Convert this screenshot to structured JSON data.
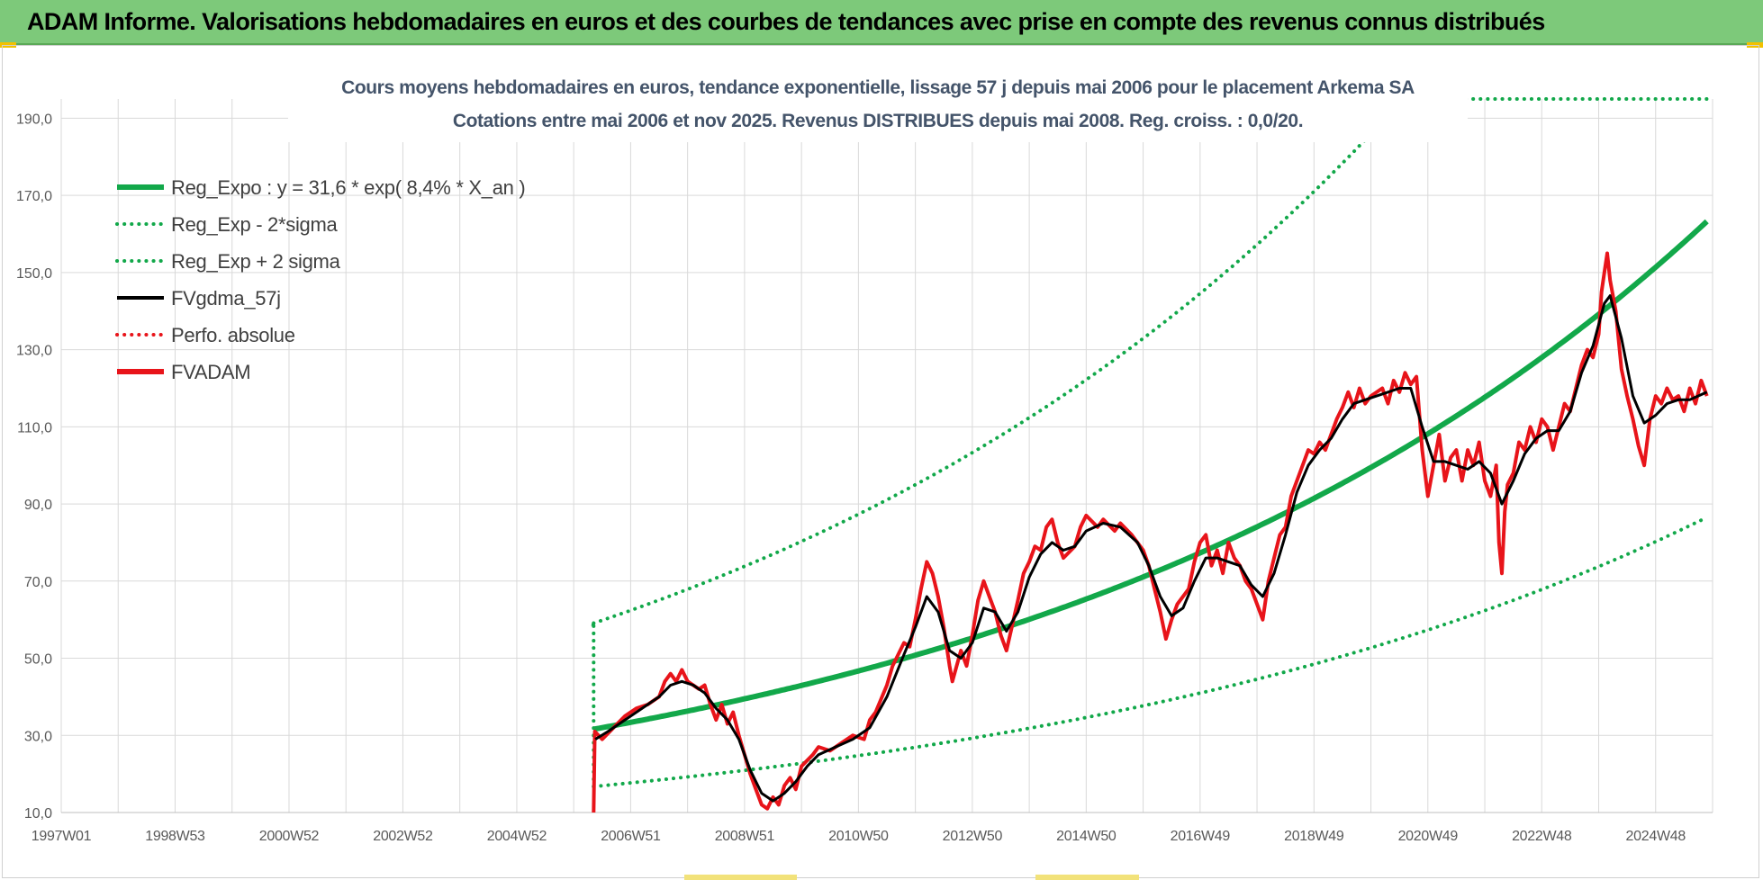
{
  "header": {
    "title": "ADAM Informe. Valorisations hebdomadaires en euros et des courbes de tendances avec prise en compte des revenus connus distribués"
  },
  "colors": {
    "banner": "#7dc97a",
    "reg_green": "#12a84a",
    "fv_black": "#000000",
    "adam_red": "#e8141a",
    "grid": "#d9d9d9",
    "title_text": "#44546a"
  },
  "chart_data": {
    "type": "line",
    "title": "Cours moyens hebdomadaires en euros, tendance exponentielle, lissage 57 j depuis mai 2006 pour le placement Arkema SA",
    "subtitle": "Cotations entre mai 2006 et nov 2025. Revenus DISTRIBUES depuis mai 2008. Reg. croiss. : 0,0/20.",
    "xlabel": "",
    "ylabel": "",
    "x_ticks": [
      "1997W01",
      "1998W53",
      "2000W52",
      "2002W52",
      "2004W52",
      "2006W51",
      "2008W51",
      "2010W50",
      "2012W50",
      "2014W50",
      "2016W49",
      "2018W49",
      "2020W49",
      "2022W48",
      "2024W48"
    ],
    "x_range": [
      1997.0,
      2026.0
    ],
    "ylim": [
      10,
      195
    ],
    "y_ticks": [
      "10,0",
      "30,0",
      "50,0",
      "70,0",
      "90,0",
      "110,0",
      "130,0",
      "150,0",
      "170,0",
      "190,0"
    ],
    "y_tick_values": [
      10,
      30,
      50,
      70,
      90,
      110,
      130,
      150,
      170,
      190
    ],
    "grid": true,
    "legend_position": "top-left",
    "legend": [
      {
        "label": "Reg_Expo : y = 31,6 * exp( 8,4% *  X_an )",
        "color": "#12a84a",
        "style": "solid-thick"
      },
      {
        "label": "Reg_Exp - 2*sigma",
        "color": "#12a84a",
        "style": "dotted"
      },
      {
        "label": "Reg_Exp + 2 sigma",
        "color": "#12a84a",
        "style": "dotted"
      },
      {
        "label": "FVgdma_57j",
        "color": "#000000",
        "style": "solid"
      },
      {
        "label": "Perfo. absolue",
        "color": "#e8141a",
        "style": "dotted"
      },
      {
        "label": "FVADAM",
        "color": "#e8141a",
        "style": "solid-thick"
      }
    ],
    "regression": {
      "a": 31.6,
      "rate": 0.084,
      "start": 2006.35,
      "end": 2025.9,
      "low_factor": 0.53,
      "high_factor": 1.87
    },
    "series": [
      {
        "name": "FVADAM",
        "points": [
          [
            2006.35,
            10
          ],
          [
            2006.37,
            31
          ],
          [
            2006.5,
            29
          ],
          [
            2006.7,
            32
          ],
          [
            2006.9,
            35
          ],
          [
            2007.1,
            37
          ],
          [
            2007.3,
            38
          ],
          [
            2007.5,
            40
          ],
          [
            2007.6,
            44
          ],
          [
            2007.7,
            46
          ],
          [
            2007.8,
            44
          ],
          [
            2007.9,
            47
          ],
          [
            2008.0,
            44
          ],
          [
            2008.2,
            42
          ],
          [
            2008.3,
            43
          ],
          [
            2008.4,
            38
          ],
          [
            2008.5,
            34
          ],
          [
            2008.6,
            38
          ],
          [
            2008.7,
            33
          ],
          [
            2008.8,
            36
          ],
          [
            2008.9,
            30
          ],
          [
            2009.0,
            25
          ],
          [
            2009.1,
            20
          ],
          [
            2009.2,
            16
          ],
          [
            2009.3,
            12
          ],
          [
            2009.4,
            11
          ],
          [
            2009.5,
            14
          ],
          [
            2009.6,
            12
          ],
          [
            2009.7,
            17
          ],
          [
            2009.8,
            19
          ],
          [
            2009.9,
            16
          ],
          [
            2010.0,
            22
          ],
          [
            2010.2,
            25
          ],
          [
            2010.3,
            27
          ],
          [
            2010.5,
            26
          ],
          [
            2010.7,
            28
          ],
          [
            2010.9,
            30
          ],
          [
            2011.1,
            29
          ],
          [
            2011.2,
            34
          ],
          [
            2011.3,
            36
          ],
          [
            2011.5,
            43
          ],
          [
            2011.6,
            48
          ],
          [
            2011.8,
            54
          ],
          [
            2011.9,
            53
          ],
          [
            2012.0,
            60
          ],
          [
            2012.1,
            68
          ],
          [
            2012.2,
            75
          ],
          [
            2012.3,
            72
          ],
          [
            2012.4,
            66
          ],
          [
            2012.5,
            58
          ],
          [
            2012.6,
            48
          ],
          [
            2012.65,
            44
          ],
          [
            2012.8,
            52
          ],
          [
            2012.9,
            48
          ],
          [
            2013.0,
            56
          ],
          [
            2013.1,
            65
          ],
          [
            2013.2,
            70
          ],
          [
            2013.3,
            66
          ],
          [
            2013.4,
            62
          ],
          [
            2013.5,
            56
          ],
          [
            2013.6,
            52
          ],
          [
            2013.8,
            65
          ],
          [
            2013.9,
            72
          ],
          [
            2014.0,
            75
          ],
          [
            2014.1,
            79
          ],
          [
            2014.2,
            78
          ],
          [
            2014.3,
            84
          ],
          [
            2014.4,
            86
          ],
          [
            2014.5,
            80
          ],
          [
            2014.6,
            76
          ],
          [
            2014.8,
            79
          ],
          [
            2014.9,
            84
          ],
          [
            2015.0,
            87
          ],
          [
            2015.2,
            84
          ],
          [
            2015.3,
            86
          ],
          [
            2015.5,
            83
          ],
          [
            2015.6,
            85
          ],
          [
            2015.8,
            82
          ],
          [
            2016.0,
            78
          ],
          [
            2016.1,
            74
          ],
          [
            2016.2,
            68
          ],
          [
            2016.3,
            62
          ],
          [
            2016.4,
            55
          ],
          [
            2016.5,
            60
          ],
          [
            2016.6,
            64
          ],
          [
            2016.8,
            68
          ],
          [
            2016.9,
            75
          ],
          [
            2017.0,
            80
          ],
          [
            2017.1,
            82
          ],
          [
            2017.2,
            74
          ],
          [
            2017.3,
            78
          ],
          [
            2017.4,
            72
          ],
          [
            2017.5,
            80
          ],
          [
            2017.6,
            76
          ],
          [
            2017.7,
            74
          ],
          [
            2017.8,
            70
          ],
          [
            2017.9,
            68
          ],
          [
            2018.0,
            64
          ],
          [
            2018.1,
            60
          ],
          [
            2018.2,
            70
          ],
          [
            2018.3,
            76
          ],
          [
            2018.4,
            82
          ],
          [
            2018.5,
            84
          ],
          [
            2018.6,
            92
          ],
          [
            2018.7,
            96
          ],
          [
            2018.8,
            100
          ],
          [
            2018.9,
            104
          ],
          [
            2019.0,
            103
          ],
          [
            2019.1,
            106
          ],
          [
            2019.2,
            104
          ],
          [
            2019.3,
            108
          ],
          [
            2019.4,
            112
          ],
          [
            2019.5,
            115
          ],
          [
            2019.6,
            119
          ],
          [
            2019.7,
            115
          ],
          [
            2019.8,
            120
          ],
          [
            2019.9,
            116
          ],
          [
            2020.0,
            118
          ],
          [
            2020.2,
            120
          ],
          [
            2020.3,
            116
          ],
          [
            2020.4,
            122
          ],
          [
            2020.5,
            119
          ],
          [
            2020.6,
            124
          ],
          [
            2020.7,
            121
          ],
          [
            2020.8,
            123
          ],
          [
            2020.9,
            104
          ],
          [
            2021.0,
            92
          ],
          [
            2021.1,
            100
          ],
          [
            2021.2,
            108
          ],
          [
            2021.3,
            96
          ],
          [
            2021.4,
            102
          ],
          [
            2021.5,
            104
          ],
          [
            2021.6,
            96
          ],
          [
            2021.7,
            104
          ],
          [
            2021.8,
            100
          ],
          [
            2021.9,
            106
          ],
          [
            2022.0,
            96
          ],
          [
            2022.1,
            92
          ],
          [
            2022.2,
            100
          ],
          [
            2022.25,
            80
          ],
          [
            2022.3,
            72
          ],
          [
            2022.35,
            88
          ],
          [
            2022.4,
            95
          ],
          [
            2022.5,
            98
          ],
          [
            2022.6,
            106
          ],
          [
            2022.7,
            104
          ],
          [
            2022.8,
            110
          ],
          [
            2022.9,
            106
          ],
          [
            2023.0,
            112
          ],
          [
            2023.1,
            110
          ],
          [
            2023.2,
            104
          ],
          [
            2023.3,
            110
          ],
          [
            2023.4,
            116
          ],
          [
            2023.5,
            114
          ],
          [
            2023.6,
            120
          ],
          [
            2023.7,
            126
          ],
          [
            2023.8,
            130
          ],
          [
            2023.9,
            128
          ],
          [
            2024.0,
            134
          ],
          [
            2024.05,
            145
          ],
          [
            2024.1,
            150
          ],
          [
            2024.15,
            155
          ],
          [
            2024.2,
            148
          ],
          [
            2024.3,
            140
          ],
          [
            2024.4,
            125
          ],
          [
            2024.5,
            118
          ],
          [
            2024.6,
            112
          ],
          [
            2024.7,
            105
          ],
          [
            2024.8,
            100
          ],
          [
            2024.9,
            112
          ],
          [
            2025.0,
            118
          ],
          [
            2025.1,
            116
          ],
          [
            2025.2,
            120
          ],
          [
            2025.3,
            117
          ],
          [
            2025.4,
            118
          ],
          [
            2025.5,
            114
          ],
          [
            2025.6,
            120
          ],
          [
            2025.7,
            116
          ],
          [
            2025.8,
            122
          ],
          [
            2025.9,
            118
          ]
        ]
      },
      {
        "name": "FVgdma_57j",
        "points": [
          [
            2006.38,
            29
          ],
          [
            2006.6,
            31
          ],
          [
            2006.9,
            34
          ],
          [
            2007.2,
            37
          ],
          [
            2007.5,
            40
          ],
          [
            2007.7,
            43
          ],
          [
            2007.9,
            44
          ],
          [
            2008.1,
            43
          ],
          [
            2008.3,
            41
          ],
          [
            2008.5,
            37
          ],
          [
            2008.7,
            34
          ],
          [
            2008.9,
            29
          ],
          [
            2009.1,
            21
          ],
          [
            2009.3,
            15
          ],
          [
            2009.5,
            13
          ],
          [
            2009.7,
            15
          ],
          [
            2009.9,
            18
          ],
          [
            2010.1,
            22
          ],
          [
            2010.3,
            25
          ],
          [
            2010.6,
            27
          ],
          [
            2010.9,
            29
          ],
          [
            2011.2,
            32
          ],
          [
            2011.5,
            40
          ],
          [
            2011.8,
            51
          ],
          [
            2012.0,
            58
          ],
          [
            2012.2,
            66
          ],
          [
            2012.4,
            62
          ],
          [
            2012.6,
            52
          ],
          [
            2012.8,
            50
          ],
          [
            2013.0,
            54
          ],
          [
            2013.2,
            63
          ],
          [
            2013.4,
            62
          ],
          [
            2013.6,
            57
          ],
          [
            2013.8,
            62
          ],
          [
            2014.0,
            71
          ],
          [
            2014.2,
            77
          ],
          [
            2014.4,
            80
          ],
          [
            2014.6,
            78
          ],
          [
            2014.8,
            79
          ],
          [
            2015.0,
            83
          ],
          [
            2015.3,
            85
          ],
          [
            2015.6,
            84
          ],
          [
            2015.9,
            80
          ],
          [
            2016.1,
            74
          ],
          [
            2016.3,
            66
          ],
          [
            2016.5,
            61
          ],
          [
            2016.7,
            63
          ],
          [
            2016.9,
            70
          ],
          [
            2017.1,
            76
          ],
          [
            2017.3,
            76
          ],
          [
            2017.5,
            75
          ],
          [
            2017.7,
            74
          ],
          [
            2017.9,
            69
          ],
          [
            2018.1,
            66
          ],
          [
            2018.3,
            72
          ],
          [
            2018.5,
            82
          ],
          [
            2018.7,
            93
          ],
          [
            2018.9,
            100
          ],
          [
            2019.1,
            104
          ],
          [
            2019.3,
            107
          ],
          [
            2019.5,
            112
          ],
          [
            2019.7,
            116
          ],
          [
            2019.9,
            117
          ],
          [
            2020.1,
            118
          ],
          [
            2020.3,
            119
          ],
          [
            2020.5,
            120
          ],
          [
            2020.7,
            120
          ],
          [
            2020.9,
            110
          ],
          [
            2021.1,
            101
          ],
          [
            2021.3,
            101
          ],
          [
            2021.5,
            100
          ],
          [
            2021.7,
            99
          ],
          [
            2021.9,
            101
          ],
          [
            2022.1,
            98
          ],
          [
            2022.3,
            90
          ],
          [
            2022.5,
            96
          ],
          [
            2022.7,
            103
          ],
          [
            2022.9,
            107
          ],
          [
            2023.1,
            109
          ],
          [
            2023.3,
            109
          ],
          [
            2023.5,
            114
          ],
          [
            2023.7,
            124
          ],
          [
            2023.9,
            131
          ],
          [
            2024.1,
            142
          ],
          [
            2024.2,
            144
          ],
          [
            2024.4,
            133
          ],
          [
            2024.6,
            118
          ],
          [
            2024.8,
            111
          ],
          [
            2025.0,
            113
          ],
          [
            2025.2,
            116
          ],
          [
            2025.4,
            117
          ],
          [
            2025.6,
            117
          ],
          [
            2025.9,
            119
          ]
        ]
      }
    ]
  }
}
